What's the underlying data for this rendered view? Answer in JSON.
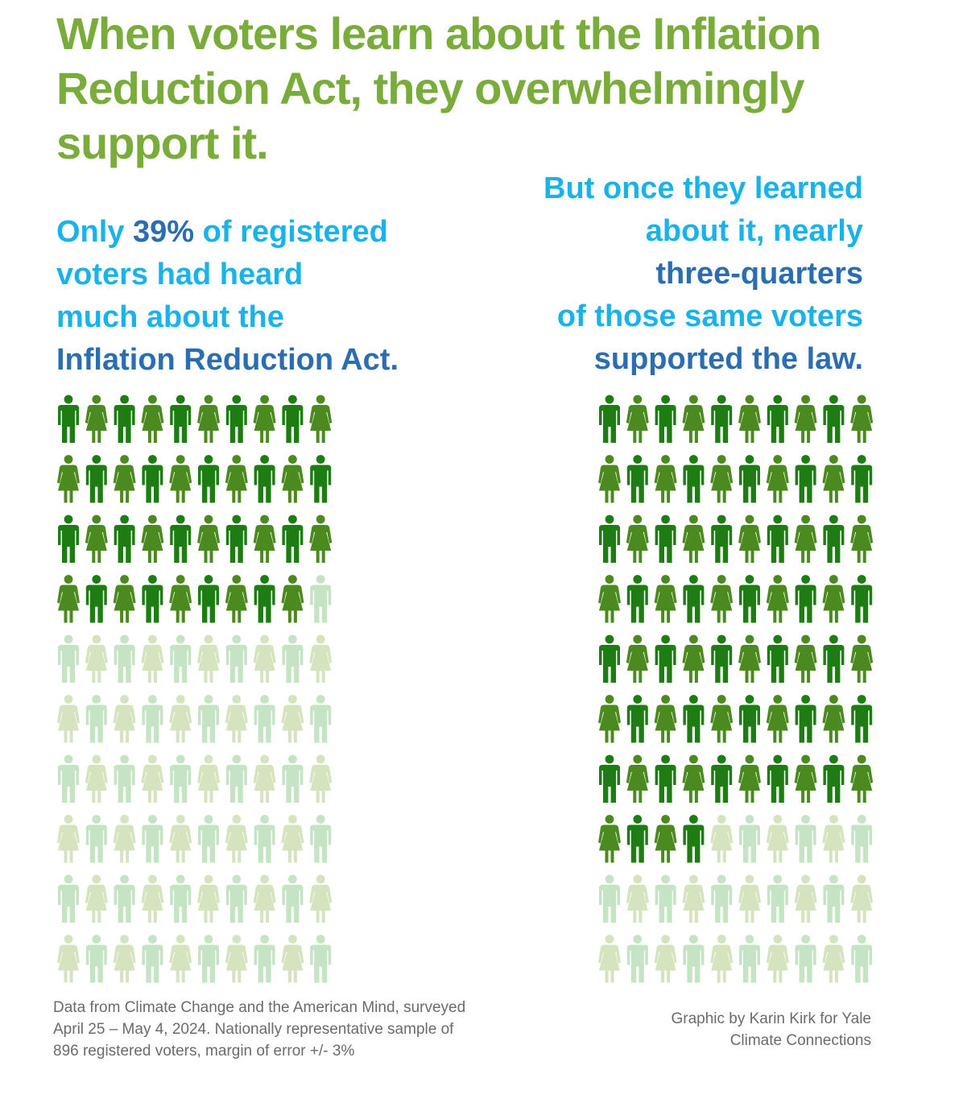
{
  "title": {
    "line1": "When voters learn about the Inflation",
    "line2": "Reduction Act, they overwhelmingly",
    "line3": "support it."
  },
  "left_callout": {
    "line1_pre": "Only ",
    "line1_em": "39%",
    "line1_post": " of registered",
    "line2": "voters had heard",
    "line3": "much about the",
    "line4": "Inflation Reduction Act."
  },
  "right_callout": {
    "line1": "But once they learned",
    "line2": "about it, nearly",
    "line3": "three-quarters",
    "line4": "of those same voters",
    "line5": "supported the law."
  },
  "footnote_left": {
    "line1": "Data from Climate Change and the American Mind, surveyed",
    "line2": "April 25 – May 4, 2024. Nationally representative sample of",
    "line3": "896 registered voters, margin of error +/- 3%"
  },
  "footnote_right": {
    "line1": "Graphic by Karin Kirk for Yale",
    "line2": "Climate Connections"
  },
  "colors": {
    "title": "#7aac3c",
    "callout": "#1ab2ea",
    "callout_emphasis": "#2a6db0",
    "highlight_male": "#1e7d12",
    "highlight_female": "#4b8a1f",
    "faded_male": "#c5e4c3",
    "faded_female": "#d6e3bf",
    "footnote": "#6b6b6b"
  },
  "chart_data": [
    {
      "type": "pictograph",
      "total_icons": 100,
      "highlighted": 39,
      "rows": 10,
      "columns": 10,
      "icon_names": [
        "male-figure-icon",
        "female-figure-icon"
      ]
    },
    {
      "type": "pictograph",
      "total_icons": 100,
      "highlighted": 74,
      "rows": 10,
      "columns": 10,
      "icon_names": [
        "male-figure-icon",
        "female-figure-icon"
      ]
    }
  ]
}
